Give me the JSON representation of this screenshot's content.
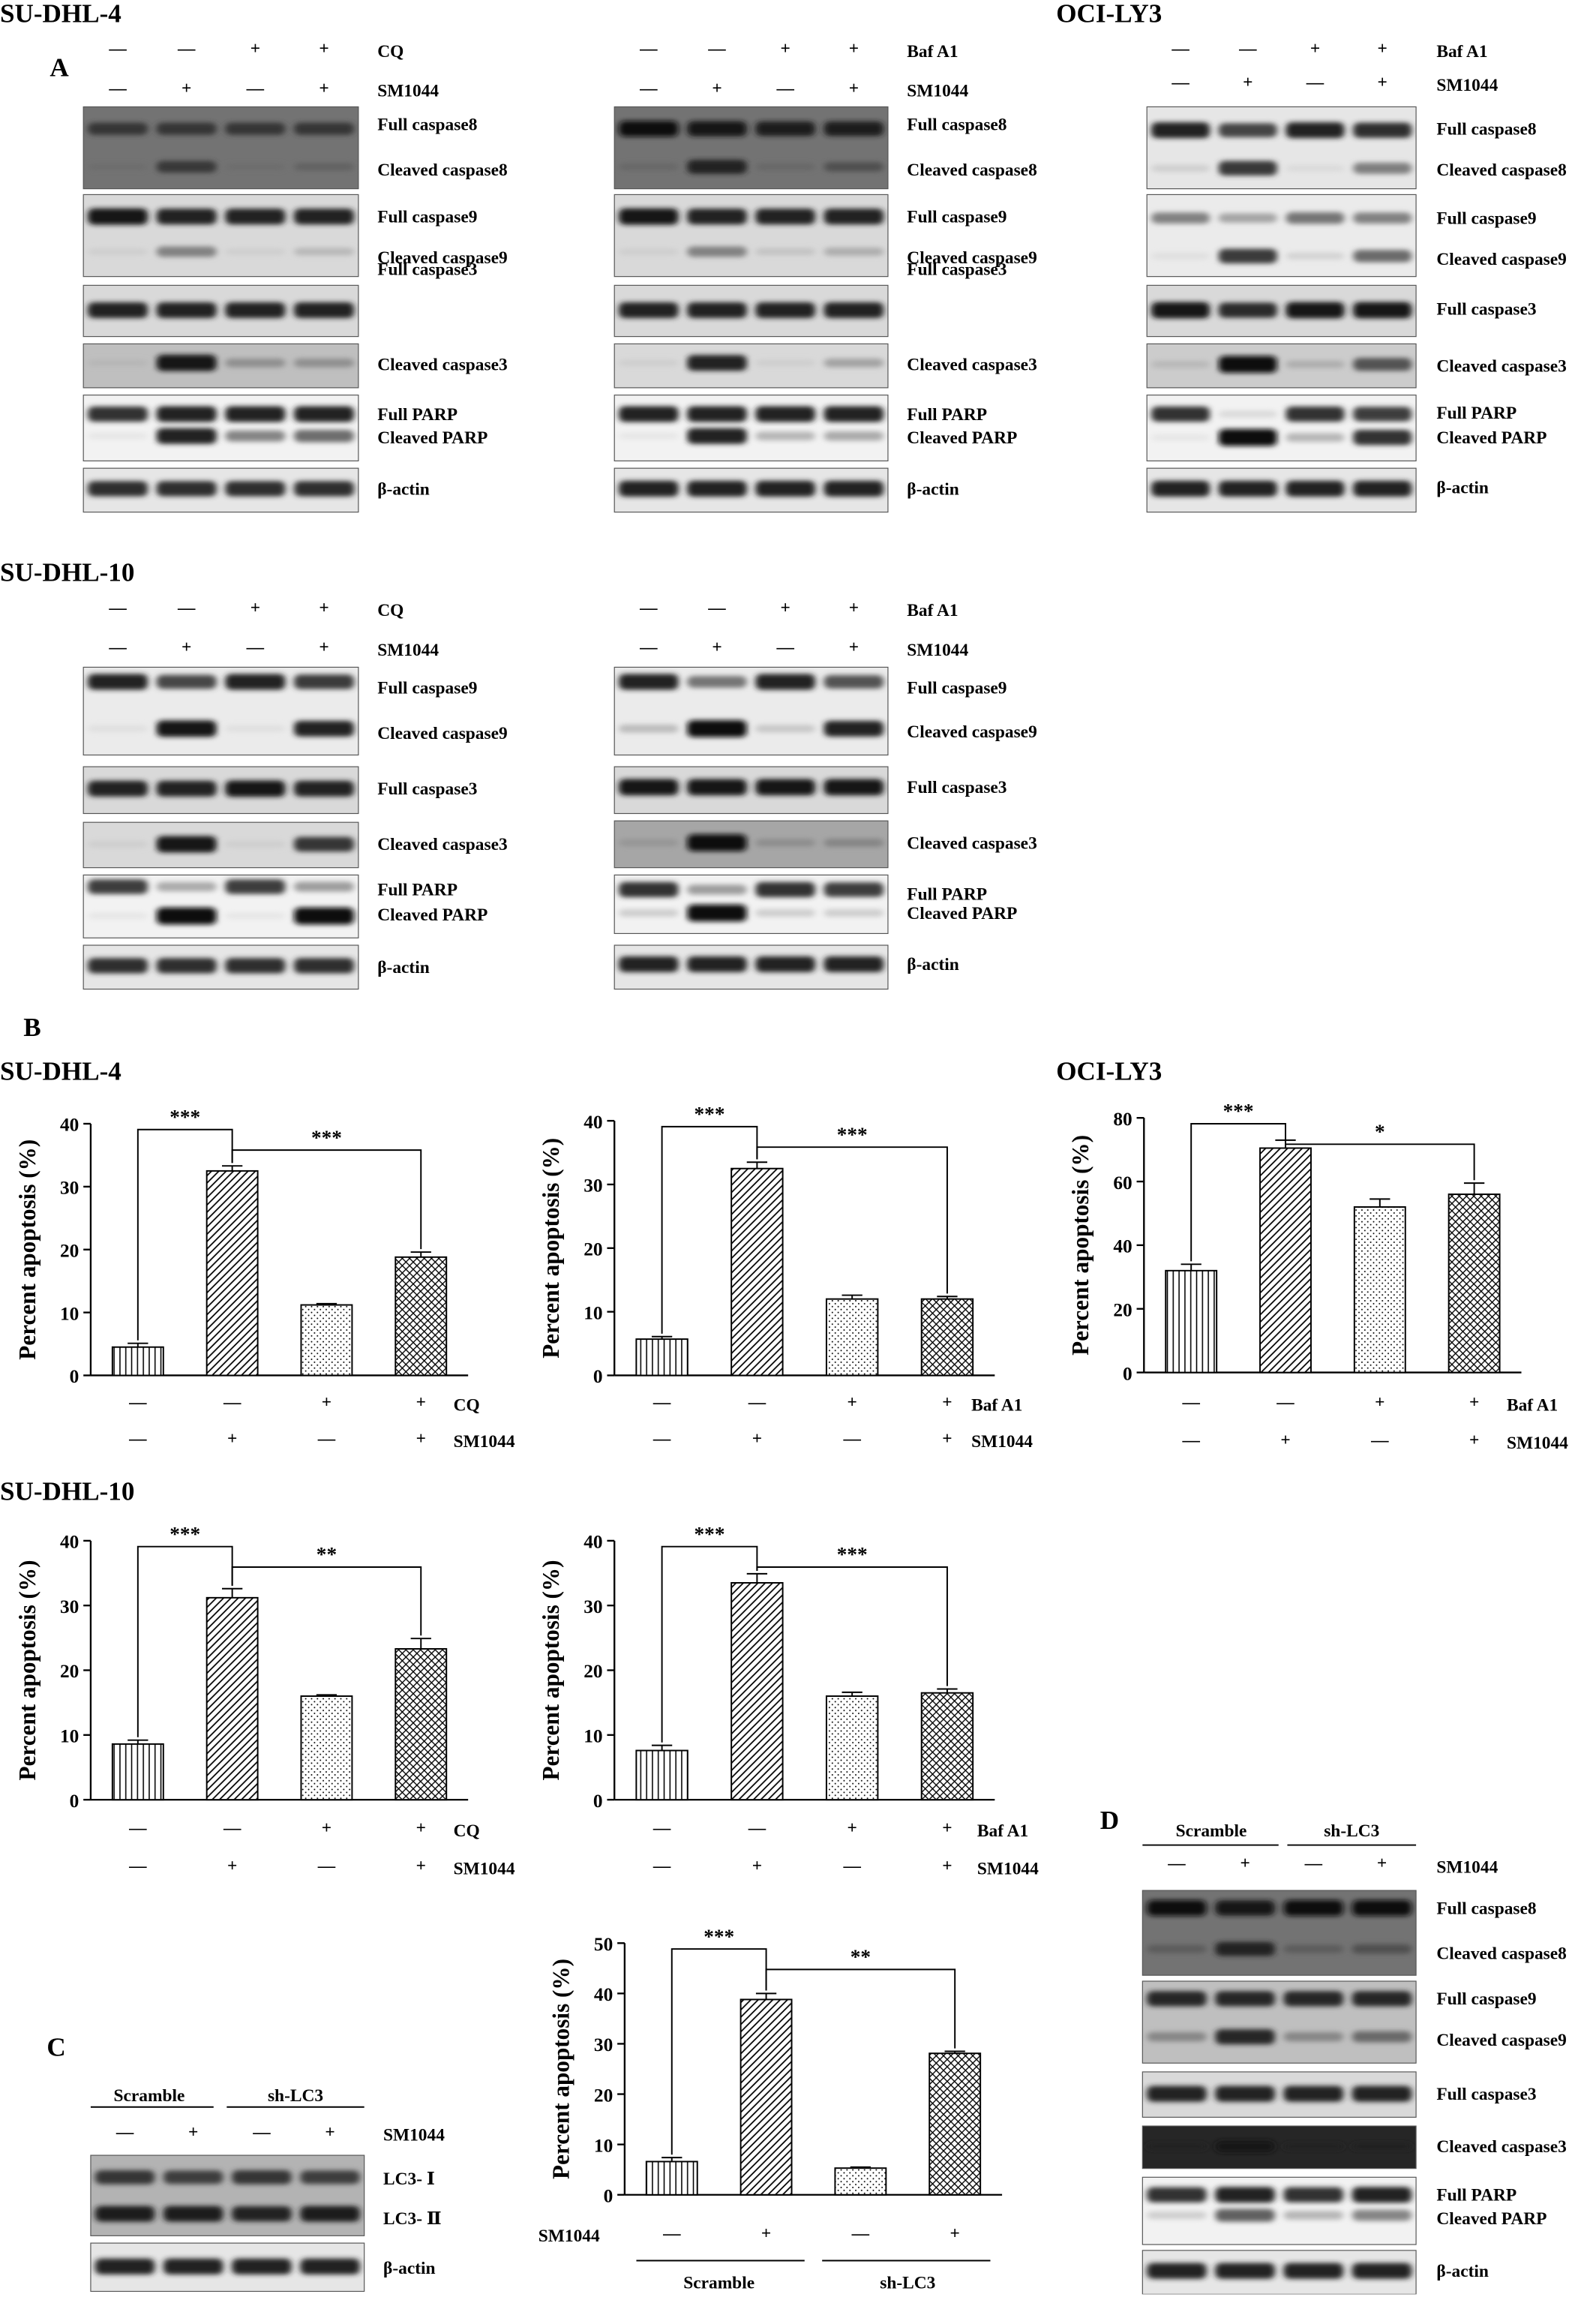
{
  "panels": {
    "A": "A",
    "B": "B",
    "C": "C",
    "D": "D"
  },
  "cell_lines": {
    "sudhl4": "SU-DHL-4",
    "ocily3": "OCI-LY3",
    "sudhl10": "SU-DHL-10"
  },
  "treatments": {
    "cq": "CQ",
    "baf": "Baf A1",
    "sm": "SM1044",
    "minus": "—",
    "plus": "+",
    "scramble": "Scramble",
    "shlc3": "sh-LC3"
  },
  "blot_labels": {
    "full_casp8": "Full caspase8",
    "cleaved_casp8": "Cleaved caspase8",
    "full_casp9": "Full caspase9",
    "cleaved_casp9": "Cleaved caspase9",
    "full_casp3": "Full caspase3",
    "cleaved_casp3": "Cleaved caspase3",
    "full_parp": "Full PARP",
    "cleaved_parp": "Cleaved PARP",
    "actin": "β-actin",
    "lc3_1": "LC3- Ⅰ",
    "lc3_2": "LC3- Ⅱ"
  },
  "blots": {
    "sudhl4_cq": [
      {
        "rows": [
          "full_casp8",
          "cleaved_casp8"
        ],
        "bands": [
          [
            0.55,
            0.55,
            0.55,
            0.55
          ],
          [
            0.05,
            0.5,
            0.05,
            0.15
          ]
        ],
        "bg": 0.55
      },
      {
        "rows": [
          "full_casp9",
          "cleaved_casp9"
        ],
        "bands": [
          [
            0.9,
            0.85,
            0.85,
            0.85
          ],
          [
            0.05,
            0.4,
            0.05,
            0.15
          ]
        ],
        "bg": 0.15
      },
      {
        "rows": [
          "full_casp3"
        ],
        "bands": [
          [
            0.85,
            0.85,
            0.85,
            0.85
          ]
        ],
        "bg": 0.15
      },
      {
        "rows": [
          "cleaved_casp3"
        ],
        "bands": [
          [
            0.05,
            0.9,
            0.25,
            0.25
          ]
        ],
        "bg": 0.25
      },
      {
        "rows": [
          "full_parp",
          "cleaved_parp"
        ],
        "bands": [
          [
            0.8,
            0.85,
            0.85,
            0.85
          ],
          [
            0.05,
            0.85,
            0.45,
            0.55
          ]
        ],
        "bg": 0.05
      },
      {
        "rows": [
          "actin"
        ],
        "bands": [
          [
            0.8,
            0.8,
            0.8,
            0.8
          ]
        ],
        "bg": 0.1
      }
    ],
    "sudhl4_baf": [
      {
        "rows": [
          "full_casp8",
          "cleaved_casp8"
        ],
        "bands": [
          [
            0.85,
            0.8,
            0.75,
            0.75
          ],
          [
            0.1,
            0.7,
            0.1,
            0.3
          ]
        ],
        "bg": 0.55
      },
      {
        "rows": [
          "full_casp9",
          "cleaved_casp9"
        ],
        "bands": [
          [
            0.9,
            0.85,
            0.85,
            0.85
          ],
          [
            0.05,
            0.4,
            0.1,
            0.2
          ]
        ],
        "bg": 0.15
      },
      {
        "rows": [
          "full_casp3"
        ],
        "bands": [
          [
            0.85,
            0.85,
            0.85,
            0.85
          ]
        ],
        "bg": 0.15
      },
      {
        "rows": [
          "cleaved_casp3"
        ],
        "bands": [
          [
            0.05,
            0.85,
            0.05,
            0.25
          ]
        ],
        "bg": 0.15
      },
      {
        "rows": [
          "full_parp",
          "cleaved_parp"
        ],
        "bands": [
          [
            0.85,
            0.85,
            0.85,
            0.85
          ],
          [
            0.05,
            0.85,
            0.25,
            0.3
          ]
        ],
        "bg": 0.05
      },
      {
        "rows": [
          "actin"
        ],
        "bands": [
          [
            0.85,
            0.85,
            0.85,
            0.85
          ]
        ],
        "bg": 0.1
      }
    ],
    "ocily3_baf": [
      {
        "rows": [
          "full_casp8",
          "cleaved_casp8"
        ],
        "bands": [
          [
            0.85,
            0.7,
            0.85,
            0.8
          ],
          [
            0.1,
            0.75,
            0.05,
            0.45
          ]
        ],
        "bg": 0.1
      },
      {
        "rows": [
          "full_casp9",
          "cleaved_casp9"
        ],
        "bands": [
          [
            0.45,
            0.3,
            0.5,
            0.45
          ],
          [
            0.05,
            0.75,
            0.1,
            0.55
          ]
        ],
        "bg": 0.08
      },
      {
        "rows": [
          "full_casp3"
        ],
        "bands": [
          [
            0.9,
            0.8,
            0.9,
            0.9
          ]
        ],
        "bg": 0.15
      },
      {
        "rows": [
          "cleaved_casp3"
        ],
        "bands": [
          [
            0.1,
            0.95,
            0.15,
            0.6
          ]
        ],
        "bg": 0.2
      },
      {
        "rows": [
          "full_parp",
          "cleaved_parp"
        ],
        "bands": [
          [
            0.8,
            0.1,
            0.8,
            0.75
          ],
          [
            0.05,
            0.95,
            0.25,
            0.8
          ]
        ],
        "bg": 0.05
      },
      {
        "rows": [
          "actin"
        ],
        "bands": [
          [
            0.85,
            0.85,
            0.85,
            0.85
          ]
        ],
        "bg": 0.1
      }
    ],
    "sudhl10_cq": [
      {
        "rows": [
          "full_casp9",
          "cleaved_casp9"
        ],
        "bands": [
          [
            0.85,
            0.7,
            0.85,
            0.75
          ],
          [
            0.05,
            0.9,
            0.05,
            0.85
          ]
        ],
        "bg": 0.08
      },
      {
        "rows": [
          "full_casp3"
        ],
        "bands": [
          [
            0.85,
            0.85,
            0.9,
            0.85
          ]
        ],
        "bg": 0.15
      },
      {
        "rows": [
          "cleaved_casp3"
        ],
        "bands": [
          [
            0.05,
            0.9,
            0.05,
            0.75
          ]
        ],
        "bg": 0.15
      },
      {
        "rows": [
          "full_parp",
          "cleaved_parp"
        ],
        "bands": [
          [
            0.75,
            0.3,
            0.75,
            0.35
          ],
          [
            0.05,
            0.95,
            0.05,
            0.95
          ]
        ],
        "bg": 0.05
      },
      {
        "rows": [
          "actin"
        ],
        "bands": [
          [
            0.8,
            0.8,
            0.8,
            0.8
          ]
        ],
        "bg": 0.1
      }
    ],
    "sudhl10_baf": [
      {
        "rows": [
          "full_casp9",
          "cleaved_casp9"
        ],
        "bands": [
          [
            0.85,
            0.5,
            0.85,
            0.65
          ],
          [
            0.2,
            0.95,
            0.15,
            0.85
          ]
        ],
        "bg": 0.08
      },
      {
        "rows": [
          "full_casp3"
        ],
        "bands": [
          [
            0.9,
            0.9,
            0.9,
            0.9
          ]
        ],
        "bg": 0.15
      },
      {
        "rows": [
          "cleaved_casp3"
        ],
        "bands": [
          [
            0.1,
            0.95,
            0.15,
            0.2
          ]
        ],
        "bg": 0.35
      },
      {
        "rows": [
          "full_parp",
          "cleaved_parp"
        ],
        "bands": [
          [
            0.8,
            0.35,
            0.8,
            0.75
          ],
          [
            0.15,
            0.95,
            0.15,
            0.15
          ]
        ],
        "bg": 0.05
      },
      {
        "rows": [
          "actin"
        ],
        "bands": [
          [
            0.85,
            0.85,
            0.85,
            0.85
          ]
        ],
        "bg": 0.1
      }
    ],
    "lc3_C": [
      {
        "rows": [
          "lc3_1",
          "lc3_2"
        ],
        "bands": [
          [
            0.7,
            0.65,
            0.7,
            0.65
          ],
          [
            0.85,
            0.85,
            0.8,
            0.85
          ]
        ],
        "bg": 0.3
      },
      {
        "rows": [
          "actin"
        ],
        "bands": [
          [
            0.85,
            0.85,
            0.85,
            0.85
          ]
        ],
        "bg": 0.1
      }
    ],
    "shlc3_D": [
      {
        "rows": [
          "full_casp8",
          "cleaved_casp8"
        ],
        "bands": [
          [
            0.85,
            0.8,
            0.85,
            0.85
          ],
          [
            0.2,
            0.7,
            0.2,
            0.3
          ]
        ],
        "bg": 0.55
      },
      {
        "rows": [
          "full_casp9",
          "cleaved_casp9"
        ],
        "bands": [
          [
            0.8,
            0.8,
            0.8,
            0.8
          ],
          [
            0.3,
            0.8,
            0.3,
            0.45
          ]
        ],
        "bg": 0.25
      },
      {
        "rows": [
          "full_casp3"
        ],
        "bands": [
          [
            0.85,
            0.85,
            0.85,
            0.85
          ]
        ],
        "bg": 0.15
      },
      {
        "rows": [
          "cleaved_casp3"
        ],
        "bands": [
          [
            0.05,
            0.5,
            0.05,
            0.08
          ]
        ],
        "bg": 0.85
      },
      {
        "rows": [
          "full_parp",
          "cleaved_parp"
        ],
        "bands": [
          [
            0.8,
            0.85,
            0.8,
            0.85
          ],
          [
            0.15,
            0.6,
            0.25,
            0.45
          ]
        ],
        "bg": 0.05
      },
      {
        "rows": [
          "actin"
        ],
        "bands": [
          [
            0.85,
            0.85,
            0.85,
            0.85
          ]
        ],
        "bg": 0.1
      }
    ]
  },
  "chart_data": [
    {
      "type": "bar",
      "id": "B-SUDHL4-CQ",
      "ylabel": "Percent  apoptosis (%)",
      "ylim": [
        0,
        40
      ],
      "yticks": [
        0,
        10,
        20,
        30,
        40
      ],
      "values": [
        4.5,
        32.5,
        11.2,
        18.8
      ],
      "errors": [
        0.6,
        0.8,
        0.2,
        0.8
      ],
      "sig": [
        {
          "from": 0,
          "to": 1,
          "label": "***"
        },
        {
          "from": 1,
          "to": 3,
          "label": "***"
        }
      ],
      "treat": "CQ",
      "rows": [
        [
          "—",
          "—",
          "+",
          "+"
        ],
        [
          "—",
          "+",
          "—",
          "+"
        ]
      ]
    },
    {
      "type": "bar",
      "id": "B-SUDHL4-BAF",
      "ylabel": "Percent  apoptosis (%)",
      "ylim": [
        0,
        40
      ],
      "yticks": [
        0,
        10,
        20,
        30,
        40
      ],
      "values": [
        5.7,
        32.5,
        12.0,
        12.0
      ],
      "errors": [
        0.4,
        1.0,
        0.6,
        0.4
      ],
      "sig": [
        {
          "from": 0,
          "to": 1,
          "label": "***"
        },
        {
          "from": 1,
          "to": 3,
          "label": "***"
        }
      ],
      "treat": "Baf A1",
      "rows": [
        [
          "—",
          "—",
          "+",
          "+"
        ],
        [
          "—",
          "+",
          "—",
          "+"
        ]
      ]
    },
    {
      "type": "bar",
      "id": "B-OCILY3-BAF",
      "ylabel": "Percent  apoptosis (%)",
      "ylim": [
        0,
        80
      ],
      "yticks": [
        0,
        20,
        40,
        60,
        80
      ],
      "values": [
        32,
        70.5,
        52,
        56
      ],
      "errors": [
        2,
        2.5,
        2.5,
        3.5
      ],
      "sig": [
        {
          "from": 0,
          "to": 1,
          "label": "***"
        },
        {
          "from": 1,
          "to": 3,
          "label": "*"
        }
      ],
      "treat": "Baf A1",
      "rows": [
        [
          "—",
          "—",
          "+",
          "+"
        ],
        [
          "—",
          "+",
          "—",
          "+"
        ]
      ]
    },
    {
      "type": "bar",
      "id": "B-SUDHL10-CQ",
      "ylabel": "Percent  apoptosis (%)",
      "ylim": [
        0,
        40
      ],
      "yticks": [
        0,
        10,
        20,
        30,
        40
      ],
      "values": [
        8.6,
        31.2,
        16.0,
        23.3
      ],
      "errors": [
        0.6,
        1.4,
        0.2,
        1.6
      ],
      "sig": [
        {
          "from": 0,
          "to": 1,
          "label": "***"
        },
        {
          "from": 1,
          "to": 3,
          "label": "**"
        }
      ],
      "treat": "CQ",
      "rows": [
        [
          "—",
          "—",
          "+",
          "+"
        ],
        [
          "—",
          "+",
          "—",
          "+"
        ]
      ]
    },
    {
      "type": "bar",
      "id": "B-SUDHL10-BAF",
      "ylabel": "Percent  apoptosis (%)",
      "ylim": [
        0,
        40
      ],
      "yticks": [
        0,
        10,
        20,
        30,
        40
      ],
      "values": [
        7.6,
        33.5,
        16.0,
        16.5
      ],
      "errors": [
        0.8,
        1.4,
        0.6,
        0.6
      ],
      "sig": [
        {
          "from": 0,
          "to": 1,
          "label": "***"
        },
        {
          "from": 1,
          "to": 3,
          "label": "***"
        }
      ],
      "treat": "Baf A1",
      "rows": [
        [
          "—",
          "—",
          "+",
          "+"
        ],
        [
          "—",
          "+",
          "—",
          "+"
        ]
      ]
    },
    {
      "type": "bar",
      "id": "C-SHLC3",
      "ylabel": "Percent  apoptosis (%)",
      "ylim": [
        0,
        50
      ],
      "yticks": [
        0,
        10,
        20,
        30,
        40,
        50
      ],
      "values": [
        6.6,
        38.8,
        5.3,
        28.1
      ],
      "errors": [
        0.8,
        1.2,
        0.2,
        0.4
      ],
      "sig": [
        {
          "from": 0,
          "to": 1,
          "label": "***"
        },
        {
          "from": 1,
          "to": 3,
          "label": "**"
        }
      ],
      "smrow": [
        "—",
        "+",
        "—",
        "+"
      ],
      "groups": [
        "Scramble",
        "sh-LC3"
      ]
    }
  ]
}
